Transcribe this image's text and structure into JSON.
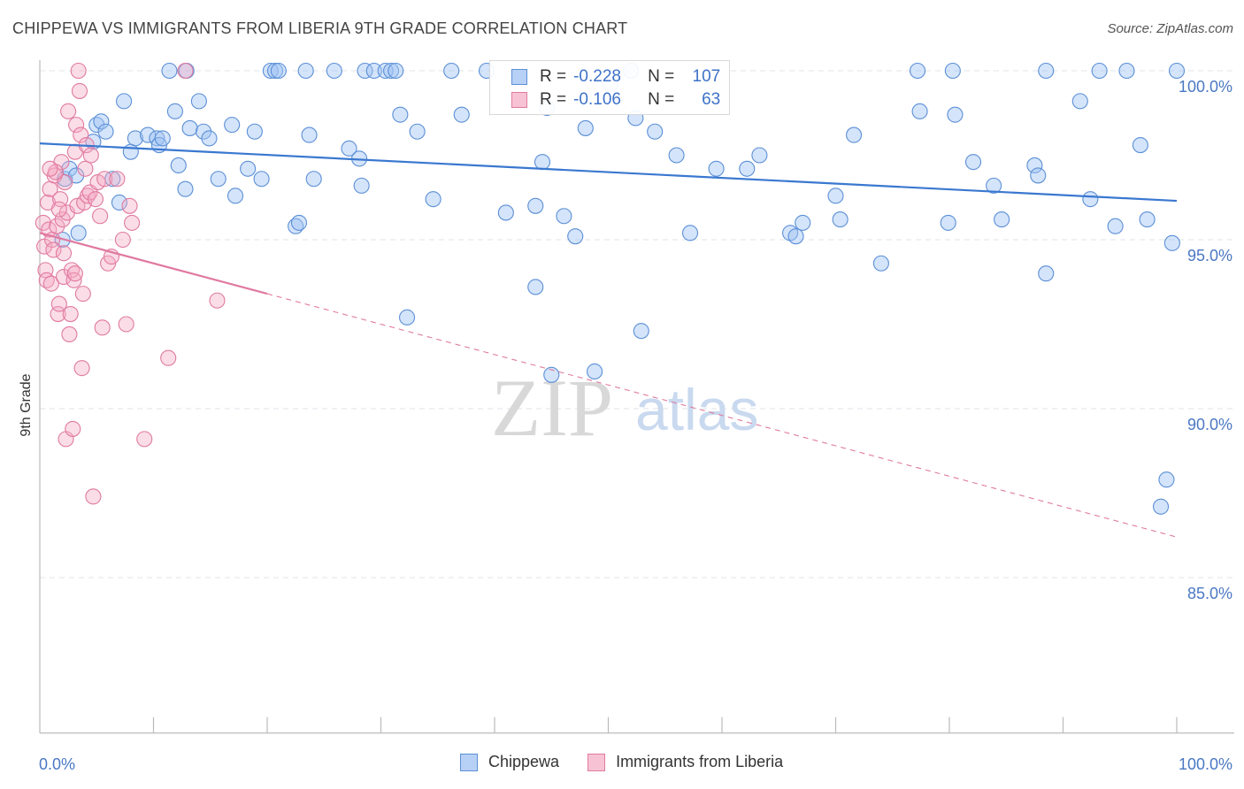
{
  "title": "CHIPPEWA VS IMMIGRANTS FROM LIBERIA 9TH GRADE CORRELATION CHART",
  "source": "Source: ZipAtlas.com",
  "watermark": {
    "zip": "ZIP",
    "atlas": "atlas"
  },
  "legend_stats": [
    {
      "r_label": "R =",
      "r_value": "-0.228",
      "n_label": "N =",
      "n_value": "107",
      "color": "#5b8fd6",
      "fill": "#b7d0f5"
    },
    {
      "r_label": "R =",
      "r_value": "-0.106",
      "n_label": "N =",
      "n_value": "63",
      "color": "#e07aa0",
      "fill": "#f7c3d4"
    }
  ],
  "bottom_legend": [
    "Chippewa",
    "Immigrants from Liberia"
  ],
  "chart_data": {
    "type": "scatter",
    "title": "CHIPPEWA VS IMMIGRANTS FROM LIBERIA 9TH GRADE CORRELATION CHART",
    "xlabel": "",
    "ylabel": "9th Grade",
    "xlim": [
      0,
      100
    ],
    "ylim": [
      80.4,
      101.0
    ],
    "x_tick_labels": [
      "0.0%",
      "100.0%"
    ],
    "y_ticks": [
      100,
      95,
      90,
      85
    ],
    "y_tick_labels": [
      "100.0%",
      "95.0%",
      "90.0%",
      "85.0%"
    ],
    "grid": true,
    "legend_position": "top-center",
    "series": [
      {
        "name": "Chippewa",
        "color": "#3a78d0",
        "trend": {
          "x": [
            0,
            100
          ],
          "y": [
            97.85,
            96.15
          ],
          "dashed_from": null
        },
        "points": [
          [
            2.2,
            96.8
          ],
          [
            2.6,
            97.1
          ],
          [
            3.2,
            96.9
          ],
          [
            3.4,
            95.2
          ],
          [
            4.7,
            97.9
          ],
          [
            5.0,
            98.4
          ],
          [
            5.4,
            98.5
          ],
          [
            5.8,
            98.2
          ],
          [
            6.4,
            96.8
          ],
          [
            7.0,
            96.1
          ],
          [
            7.4,
            99.1
          ],
          [
            8.0,
            97.6
          ],
          [
            8.4,
            98.0
          ],
          [
            9.5,
            98.1
          ],
          [
            10.3,
            98.0
          ],
          [
            10.5,
            97.8
          ],
          [
            10.8,
            98.0
          ],
          [
            11.4,
            100.0
          ],
          [
            11.9,
            98.8
          ],
          [
            12.2,
            97.2
          ],
          [
            12.8,
            96.5
          ],
          [
            12.9,
            100.0
          ],
          [
            13.2,
            98.3
          ],
          [
            14.0,
            99.1
          ],
          [
            14.4,
            98.2
          ],
          [
            14.9,
            98.0
          ],
          [
            15.7,
            96.8
          ],
          [
            16.9,
            98.4
          ],
          [
            17.2,
            96.3
          ],
          [
            18.3,
            97.1
          ],
          [
            18.9,
            98.2
          ],
          [
            19.5,
            96.8
          ],
          [
            20.3,
            100.0
          ],
          [
            20.7,
            100.0
          ],
          [
            21.0,
            100.0
          ],
          [
            22.5,
            95.4
          ],
          [
            22.8,
            95.5
          ],
          [
            23.4,
            100.0
          ],
          [
            23.7,
            98.1
          ],
          [
            24.1,
            96.8
          ],
          [
            25.9,
            100.0
          ],
          [
            27.2,
            97.7
          ],
          [
            28.1,
            97.4
          ],
          [
            28.3,
            96.6
          ],
          [
            28.6,
            100.0
          ],
          [
            29.4,
            100.0
          ],
          [
            30.4,
            100.0
          ],
          [
            30.9,
            100.0
          ],
          [
            31.3,
            100.0
          ],
          [
            31.7,
            98.7
          ],
          [
            32.3,
            92.7
          ],
          [
            33.2,
            98.2
          ],
          [
            34.6,
            96.2
          ],
          [
            36.2,
            100.0
          ],
          [
            37.1,
            98.7
          ],
          [
            39.3,
            100.0
          ],
          [
            41.0,
            95.8
          ],
          [
            43.6,
            96.0
          ],
          [
            43.6,
            93.6
          ],
          [
            44.2,
            97.3
          ],
          [
            44.6,
            98.9
          ],
          [
            46.1,
            95.7
          ],
          [
            47.1,
            95.1
          ],
          [
            48.0,
            98.3
          ],
          [
            48.8,
            91.1
          ],
          [
            50.2,
            99.6
          ],
          [
            52.4,
            98.6
          ],
          [
            52.9,
            92.3
          ],
          [
            54.1,
            98.2
          ],
          [
            56.0,
            97.5
          ],
          [
            57.2,
            95.2
          ],
          [
            59.5,
            97.1
          ],
          [
            62.2,
            97.1
          ],
          [
            63.3,
            97.5
          ],
          [
            66.0,
            95.2
          ],
          [
            66.5,
            95.1
          ],
          [
            67.1,
            95.5
          ],
          [
            70.0,
            96.3
          ],
          [
            70.4,
            95.6
          ],
          [
            71.6,
            98.1
          ],
          [
            74.0,
            94.3
          ],
          [
            77.2,
            100.0
          ],
          [
            77.4,
            98.8
          ],
          [
            79.9,
            95.5
          ],
          [
            80.3,
            100.0
          ],
          [
            80.5,
            98.7
          ],
          [
            82.1,
            97.3
          ],
          [
            83.9,
            96.6
          ],
          [
            84.6,
            95.6
          ],
          [
            87.5,
            97.2
          ],
          [
            87.8,
            96.9
          ],
          [
            88.5,
            94.0
          ],
          [
            88.5,
            100.0
          ],
          [
            91.5,
            99.1
          ],
          [
            92.4,
            96.2
          ],
          [
            93.2,
            100.0
          ],
          [
            94.6,
            95.4
          ],
          [
            95.6,
            100.0
          ],
          [
            96.8,
            97.8
          ],
          [
            97.4,
            95.6
          ],
          [
            98.6,
            87.1
          ],
          [
            99.1,
            87.9
          ],
          [
            99.6,
            94.9
          ],
          [
            100.0,
            100.0
          ],
          [
            2.0,
            95.0
          ],
          [
            45.0,
            91.0
          ],
          [
            52.0,
            100.0
          ]
        ]
      },
      {
        "name": "Immigrants from Liberia",
        "color": "#e07aa0",
        "trend": {
          "x": [
            0,
            100
          ],
          "y": [
            95.2,
            86.2
          ],
          "dashed_from": 20
        },
        "points": [
          [
            0.3,
            95.5
          ],
          [
            0.4,
            94.8
          ],
          [
            0.5,
            94.1
          ],
          [
            0.6,
            93.8
          ],
          [
            0.7,
            96.1
          ],
          [
            0.8,
            95.3
          ],
          [
            0.9,
            96.5
          ],
          [
            1.0,
            93.7
          ],
          [
            1.1,
            95.0
          ],
          [
            1.2,
            94.7
          ],
          [
            1.3,
            96.9
          ],
          [
            1.5,
            95.4
          ],
          [
            1.6,
            92.8
          ],
          [
            1.7,
            93.1
          ],
          [
            1.8,
            96.2
          ],
          [
            1.9,
            97.3
          ],
          [
            2.0,
            95.6
          ],
          [
            2.1,
            93.9
          ],
          [
            2.2,
            96.7
          ],
          [
            2.3,
            89.1
          ],
          [
            2.4,
            95.8
          ],
          [
            2.5,
            98.8
          ],
          [
            2.6,
            92.2
          ],
          [
            2.7,
            92.8
          ],
          [
            2.8,
            94.1
          ],
          [
            2.9,
            89.4
          ],
          [
            3.0,
            93.8
          ],
          [
            3.1,
            97.6
          ],
          [
            3.2,
            98.4
          ],
          [
            3.3,
            96.0
          ],
          [
            3.4,
            100.0
          ],
          [
            3.5,
            99.4
          ],
          [
            3.6,
            98.1
          ],
          [
            3.7,
            91.2
          ],
          [
            3.8,
            93.4
          ],
          [
            3.9,
            96.1
          ],
          [
            4.0,
            97.1
          ],
          [
            4.1,
            97.8
          ],
          [
            4.2,
            96.3
          ],
          [
            4.4,
            96.4
          ],
          [
            4.7,
            87.4
          ],
          [
            4.9,
            96.2
          ],
          [
            5.1,
            96.7
          ],
          [
            5.3,
            95.7
          ],
          [
            5.5,
            92.4
          ],
          [
            5.7,
            96.8
          ],
          [
            6.0,
            94.3
          ],
          [
            6.3,
            94.5
          ],
          [
            7.3,
            95.0
          ],
          [
            7.6,
            92.5
          ],
          [
            7.9,
            96.0
          ],
          [
            8.1,
            95.5
          ],
          [
            9.2,
            89.1
          ],
          [
            11.3,
            91.5
          ],
          [
            12.8,
            100.0
          ],
          [
            15.6,
            93.2
          ],
          [
            1.4,
            97.0
          ],
          [
            2.1,
            94.6
          ],
          [
            3.1,
            94.0
          ],
          [
            4.5,
            97.5
          ],
          [
            0.9,
            97.1
          ],
          [
            1.7,
            95.9
          ],
          [
            6.8,
            96.8
          ]
        ]
      }
    ]
  }
}
